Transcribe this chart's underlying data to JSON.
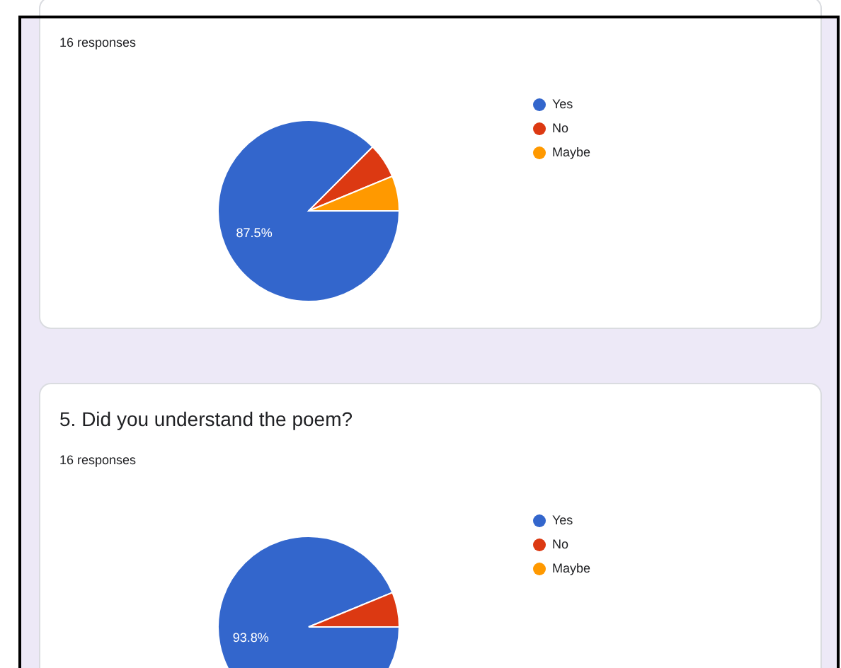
{
  "chart_data": [
    {
      "type": "pie",
      "subtitle": "16 responses",
      "categories": [
        "Yes",
        "No",
        "Maybe"
      ],
      "values": [
        87.5,
        6.25,
        6.25
      ],
      "colors": [
        "#3366cc",
        "#dc3912",
        "#ff9900"
      ],
      "value_labels": [
        "87.5%",
        null,
        null
      ],
      "legend": "right"
    },
    {
      "type": "pie",
      "title": "5. Did you understand the poem?",
      "subtitle": "16 responses",
      "categories": [
        "Yes",
        "No",
        "Maybe"
      ],
      "values": [
        93.8,
        6.2,
        0
      ],
      "colors": [
        "#3366cc",
        "#dc3912",
        "#ff9900"
      ],
      "value_labels": [
        "93.8%",
        null,
        null
      ],
      "legend": "right"
    }
  ]
}
